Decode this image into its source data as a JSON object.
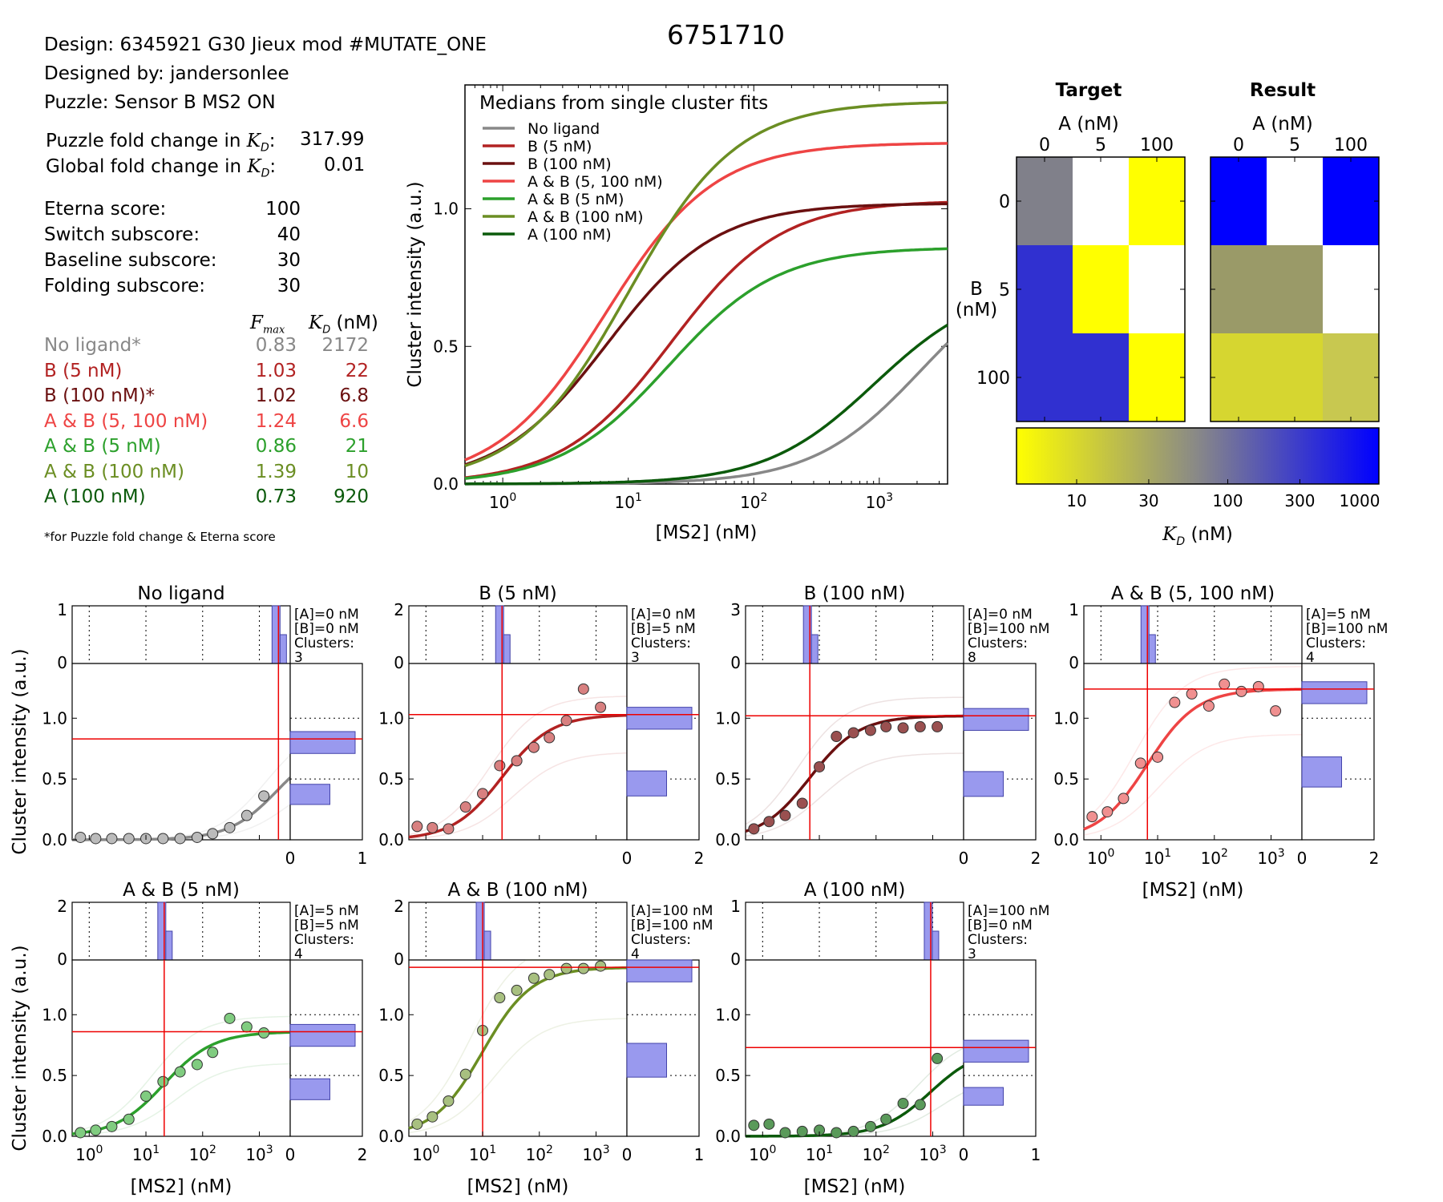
{
  "id_title": "6751710",
  "info": {
    "design": "Design: 6345921 G30 Jieux mod #MUTATE_ONE",
    "designed_by": "Designed by: jandersonlee",
    "puzzle": "Puzzle: Sensor B MS2 ON",
    "puzzle_fold_label": "Puzzle fold change in",
    "puzzle_fold_value": "317.99",
    "global_fold_label": "Global fold change in",
    "global_fold_value": "0.01",
    "kd_symbol": "K",
    "kd_sub": "D",
    "scores": [
      {
        "label": "Eterna score:",
        "value": "100"
      },
      {
        "label": "Switch subscore:",
        "value": "40"
      },
      {
        "label": "Baseline subscore:",
        "value": "30"
      },
      {
        "label": "Folding subscore:",
        "value": "30"
      }
    ],
    "fmax_header": "F",
    "fmax_sub": "max",
    "kd_header": "(nM)",
    "footnote": "*for Puzzle fold change & Eterna score"
  },
  "conditions": [
    {
      "label": "No ligand*",
      "fmax": "0.83",
      "kd": "2172",
      "color": "#888888"
    },
    {
      "label": "B (5 nM)",
      "fmax": "1.03",
      "kd": "22",
      "color": "#b22222"
    },
    {
      "label": "B (100 nM)*",
      "fmax": "1.02",
      "kd": "6.8",
      "color": "#6b1010"
    },
    {
      "label": "A & B (5, 100 nM)",
      "fmax": "1.24",
      "kd": "6.6",
      "color": "#ee4444"
    },
    {
      "label": "A & B (5 nM)",
      "fmax": "0.86",
      "kd": "21",
      "color": "#2ca02c"
    },
    {
      "label": "A & B (100 nM)",
      "fmax": "1.39",
      "kd": "10",
      "color": "#6b8e23"
    },
    {
      "label": "A (100 nM)",
      "fmax": "0.73",
      "kd": "920",
      "color": "#0b5a0b"
    }
  ],
  "chart_data": [
    {
      "type": "line",
      "title": "Medians from single cluster fits",
      "xlabel": "[MS2] (nM)",
      "ylabel": "Cluster intensity (a.u.)",
      "x_scale": "log",
      "xlim": [
        0.5,
        3500
      ],
      "ylim": [
        0,
        1.45
      ],
      "x_ticks": [
        "10^0",
        "10^1",
        "10^2",
        "10^3"
      ],
      "y_ticks": [
        "0.0",
        "0.5",
        "1.0"
      ],
      "legend_placement": "top-left",
      "series": [
        {
          "name": "No ligand",
          "fmax": 0.83,
          "kd": 2172,
          "color": "#888888"
        },
        {
          "name": "B (5 nM)",
          "fmax": 1.03,
          "kd": 22,
          "color": "#b22222"
        },
        {
          "name": "B (100 nM)",
          "fmax": 1.02,
          "kd": 6.8,
          "color": "#6b1010"
        },
        {
          "name": "A & B (5, 100 nM)",
          "fmax": 1.24,
          "kd": 6.6,
          "color": "#ee4444"
        },
        {
          "name": "A & B (5 nM)",
          "fmax": 0.86,
          "kd": 21,
          "color": "#2ca02c"
        },
        {
          "name": "A & B (100 nM)",
          "fmax": 1.39,
          "kd": 10,
          "color": "#6b8e23"
        },
        {
          "name": "A (100 nM)",
          "fmax": 0.73,
          "kd": 920,
          "color": "#0b5a0b"
        }
      ]
    },
    {
      "type": "heatmap",
      "title": "Target",
      "xlabel": "A (nM)",
      "ylabel": "B (nM)",
      "x_categories": [
        "0",
        "5",
        "100"
      ],
      "y_categories": [
        "0",
        "5",
        "100"
      ],
      "cells": [
        [
          "#80808a",
          "#ffffff",
          "#ffff00"
        ],
        [
          "#3030d0",
          "#ffff00",
          "#ffffff"
        ],
        [
          "#3030d0",
          "#3030d0",
          "#ffff00"
        ]
      ]
    },
    {
      "type": "heatmap",
      "title": "Result",
      "xlabel": "A (nM)",
      "ylabel": "B (nM)",
      "x_categories": [
        "0",
        "5",
        "100"
      ],
      "y_categories": [
        "0",
        "5",
        "100"
      ],
      "cells": [
        [
          "#0000ff",
          "#ffffff",
          "#0000ff"
        ],
        [
          "#9a9a68",
          "#9a9a68",
          "#ffffff"
        ],
        [
          "#d6d630",
          "#d6d630",
          "#c8c850"
        ]
      ]
    },
    {
      "type": "colorbar",
      "xlabel": "(nM)",
      "label_symbol": "K",
      "label_sub": "D",
      "scale": "log",
      "range": [
        4,
        1000
      ],
      "ticks": [
        "10",
        "30",
        "100",
        "300",
        "1000"
      ],
      "colors": [
        "#ffff00",
        "#888888",
        "#0000ff"
      ]
    },
    {
      "type": "scatter",
      "note": "Small multiples: per-condition fits with cluster data points",
      "xlabel": "[MS2] (nM)",
      "ylabel": "Cluster intensity (a.u.)",
      "x_scale": "log",
      "x_ticks": [
        "10^0",
        "10^1",
        "10^2",
        "10^3"
      ],
      "panels": [
        {
          "title": "No ligand",
          "A": "[A]=0 nM",
          "B": "[B]=0 nM",
          "clusters_label": "Clusters:",
          "clusters": "3",
          "fmax": 0.83,
          "kd": 2172,
          "ylim": [
            0,
            1.45
          ],
          "yticks": [
            "0.0",
            "0.5",
            "1.0"
          ],
          "hist_y": "1",
          "hist_x": "1",
          "color": "#888888",
          "fill": "#bbbbbb",
          "points": [
            [
              0.7,
              0.02
            ],
            [
              1.3,
              0.01
            ],
            [
              2.5,
              0.01
            ],
            [
              5,
              0.01
            ],
            [
              10,
              0.01
            ],
            [
              20,
              0.01
            ],
            [
              40,
              0.01
            ],
            [
              80,
              0.02
            ],
            [
              150,
              0.05
            ],
            [
              300,
              0.1
            ],
            [
              600,
              0.2
            ],
            [
              1200,
              0.36
            ]
          ]
        },
        {
          "title": "B (5 nM)",
          "A": "[A]=0 nM",
          "B": "[B]=5 nM",
          "clusters_label": "Clusters:",
          "clusters": "3",
          "fmax": 1.03,
          "kd": 22,
          "ylim": [
            0,
            1.45
          ],
          "yticks": [
            "0.0",
            "0.5",
            "1.0"
          ],
          "hist_y": "2",
          "hist_x": "2",
          "color": "#b22222",
          "fill": "#d88080",
          "points": [
            [
              0.7,
              0.11
            ],
            [
              1.3,
              0.1
            ],
            [
              2.5,
              0.09
            ],
            [
              5,
              0.27
            ],
            [
              10,
              0.38
            ],
            [
              20,
              0.61
            ],
            [
              40,
              0.65
            ],
            [
              80,
              0.76
            ],
            [
              150,
              0.84
            ],
            [
              300,
              0.98
            ],
            [
              600,
              1.24
            ],
            [
              1200,
              1.09
            ]
          ]
        },
        {
          "title": "B (100 nM)",
          "A": "[A]=0 nM",
          "B": "[B]=100 nM",
          "clusters_label": "Clusters:",
          "clusters": "8",
          "fmax": 1.02,
          "kd": 6.8,
          "ylim": [
            0,
            1.45
          ],
          "yticks": [
            "0.0",
            "0.5",
            "1.0"
          ],
          "hist_y": "3",
          "hist_x": "2",
          "color": "#6b1010",
          "fill": "#9a5050",
          "points": [
            [
              0.7,
              0.09
            ],
            [
              1.3,
              0.15
            ],
            [
              2.5,
              0.2
            ],
            [
              5,
              0.3
            ],
            [
              10,
              0.6
            ],
            [
              20,
              0.85
            ],
            [
              40,
              0.88
            ],
            [
              80,
              0.9
            ],
            [
              150,
              0.93
            ],
            [
              300,
              0.92
            ],
            [
              600,
              0.93
            ],
            [
              1200,
              0.93
            ]
          ]
        },
        {
          "title": "A & B (5, 100 nM)",
          "A": "[A]=5 nM",
          "B": "[B]=100 nM",
          "clusters_label": "Clusters:",
          "clusters": "4",
          "fmax": 1.24,
          "kd": 6.6,
          "ylim": [
            0,
            1.45
          ],
          "yticks": [
            "0.0",
            "0.5",
            "1.0"
          ],
          "hist_y": "1",
          "hist_x": "2",
          "color": "#ee4444",
          "fill": "#f09090",
          "points": [
            [
              0.7,
              0.19
            ],
            [
              1.3,
              0.23
            ],
            [
              2.5,
              0.34
            ],
            [
              5,
              0.63
            ],
            [
              10,
              0.68
            ],
            [
              20,
              1.13
            ],
            [
              40,
              1.2
            ],
            [
              80,
              1.1
            ],
            [
              150,
              1.28
            ],
            [
              300,
              1.22
            ],
            [
              600,
              1.26
            ],
            [
              1200,
              1.06
            ]
          ]
        },
        {
          "title": "A & B (5 nM)",
          "A": "[A]=5 nM",
          "B": "[B]=5 nM",
          "clusters_label": "Clusters:",
          "clusters": "4",
          "fmax": 0.86,
          "kd": 21,
          "ylim": [
            0,
            1.45
          ],
          "yticks": [
            "0.0",
            "0.5",
            "1.0"
          ],
          "hist_y": "2",
          "hist_x": "2",
          "color": "#2ca02c",
          "fill": "#80cc80",
          "points": [
            [
              0.7,
              0.03
            ],
            [
              1.3,
              0.05
            ],
            [
              2.5,
              0.08
            ],
            [
              5,
              0.14
            ],
            [
              10,
              0.33
            ],
            [
              20,
              0.45
            ],
            [
              40,
              0.53
            ],
            [
              80,
              0.59
            ],
            [
              150,
              0.69
            ],
            [
              300,
              0.97
            ],
            [
              600,
              0.9
            ],
            [
              1200,
              0.85
            ]
          ]
        },
        {
          "title": "A & B (100 nM)",
          "A": "[A]=100 nM",
          "B": "[B]=100 nM",
          "clusters_label": "Clusters:",
          "clusters": "4",
          "fmax": 1.39,
          "kd": 10,
          "ylim": [
            0,
            1.45
          ],
          "yticks": [
            "0.0",
            "0.5",
            "1.0"
          ],
          "hist_y": "2",
          "hist_x": "1",
          "color": "#6b8e23",
          "fill": "#a8c080",
          "points": [
            [
              0.7,
              0.1
            ],
            [
              1.3,
              0.16
            ],
            [
              2.5,
              0.29
            ],
            [
              5,
              0.51
            ],
            [
              10,
              0.87
            ],
            [
              20,
              1.14
            ],
            [
              40,
              1.2
            ],
            [
              80,
              1.3
            ],
            [
              150,
              1.33
            ],
            [
              300,
              1.38
            ],
            [
              600,
              1.38
            ],
            [
              1200,
              1.4
            ]
          ]
        },
        {
          "title": "A (100 nM)",
          "A": "[A]=100 nM",
          "B": "[B]=0 nM",
          "clusters_label": "Clusters:",
          "clusters": "3",
          "fmax": 0.73,
          "kd": 920,
          "ylim": [
            0,
            1.45
          ],
          "yticks": [
            "0.0",
            "0.5",
            "1.0"
          ],
          "hist_y": "1",
          "hist_x": "1",
          "color": "#0b5a0b",
          "fill": "#5a9a5a",
          "points": [
            [
              0.7,
              0.09
            ],
            [
              1.3,
              0.1
            ],
            [
              2.5,
              0.03
            ],
            [
              5,
              0.04
            ],
            [
              10,
              0.05
            ],
            [
              20,
              0.03
            ],
            [
              40,
              0.04
            ],
            [
              80,
              0.08
            ],
            [
              150,
              0.14
            ],
            [
              300,
              0.27
            ],
            [
              600,
              0.26
            ],
            [
              1200,
              0.64
            ]
          ]
        }
      ]
    }
  ]
}
